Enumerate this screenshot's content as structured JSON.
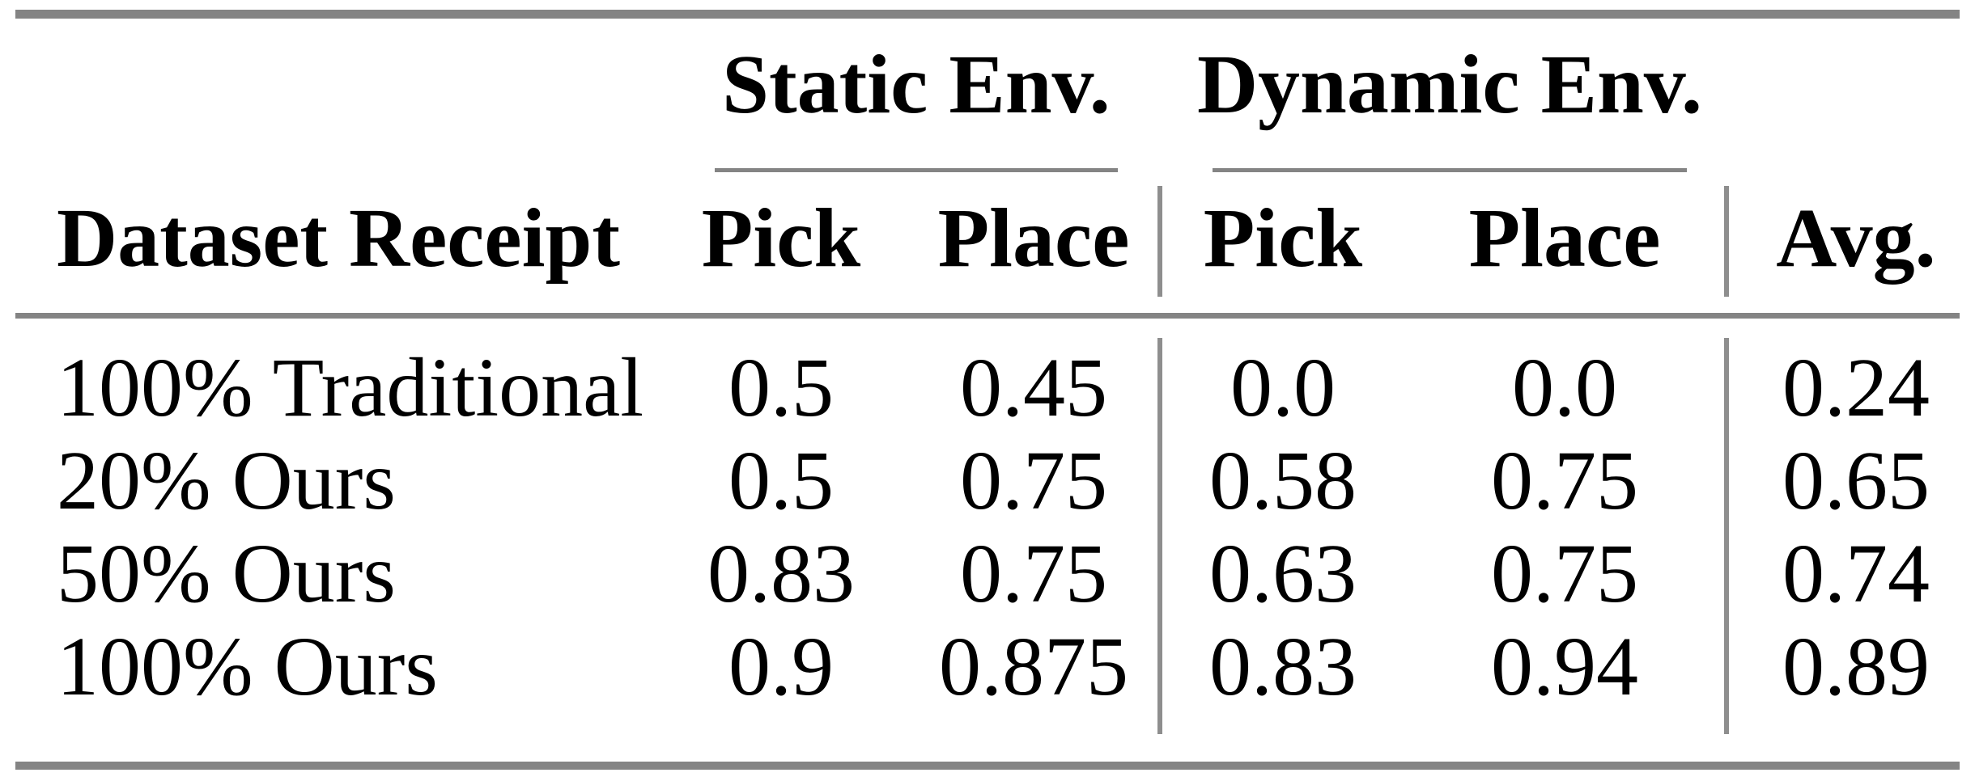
{
  "table": {
    "rule_color": "#848484",
    "group_headers": [
      {
        "label": "Static Env."
      },
      {
        "label": "Dynamic Env."
      }
    ],
    "columns": [
      "Dataset Receipt",
      "Pick",
      "Place",
      "Pick",
      "Place",
      "Avg."
    ],
    "rows": [
      {
        "label": "100% Traditional",
        "cells": [
          "0.5",
          "0.45",
          "0.0",
          "0.0",
          "0.24"
        ]
      },
      {
        "label": "20% Ours",
        "cells": [
          "0.5",
          "0.75",
          "0.58",
          "0.75",
          "0.65"
        ]
      },
      {
        "label": "50% Ours",
        "cells": [
          "0.83",
          "0.75",
          "0.63",
          "0.75",
          "0.74"
        ]
      },
      {
        "label": "100% Ours",
        "cells": [
          "0.9",
          "0.875",
          "0.83",
          "0.94",
          "0.89"
        ]
      }
    ]
  },
  "chart_data": {
    "type": "table",
    "title": "",
    "column_groups": [
      "",
      "Static Env.",
      "Static Env.",
      "Dynamic Env.",
      "Dynamic Env.",
      ""
    ],
    "columns": [
      "Dataset Receipt",
      "Pick",
      "Place",
      "Pick",
      "Place",
      "Avg."
    ],
    "rows": [
      [
        "100% Traditional",
        0.5,
        0.45,
        0.0,
        0.0,
        0.24
      ],
      [
        "20% Ours",
        0.5,
        0.75,
        0.58,
        0.75,
        0.65
      ],
      [
        "50% Ours",
        0.83,
        0.75,
        0.63,
        0.75,
        0.74
      ],
      [
        "100% Ours",
        0.9,
        0.875,
        0.83,
        0.94,
        0.89
      ]
    ]
  }
}
